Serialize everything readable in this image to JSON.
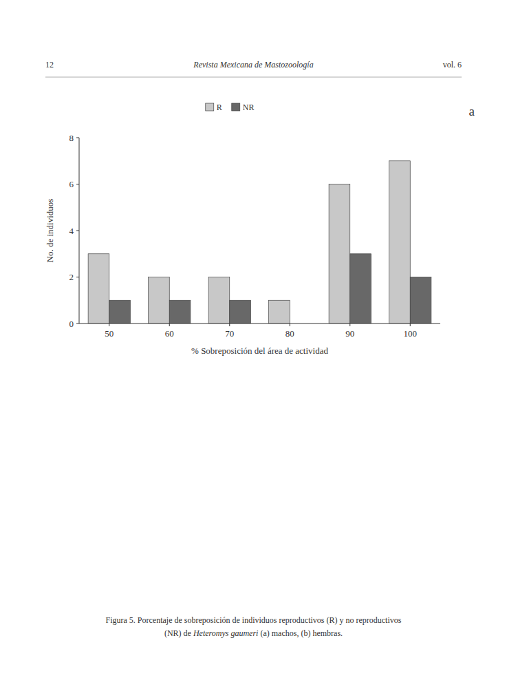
{
  "header": {
    "left": "12",
    "center": "Revista Mexicana de Mastozoología",
    "right": "vol. 6"
  },
  "chart_data": {
    "type": "bar",
    "categories": [
      "50",
      "60",
      "70",
      "80",
      "90",
      "100"
    ],
    "series": [
      {
        "name": "R",
        "color": "#c8c8c8",
        "values": [
          3,
          2,
          2,
          1,
          6,
          7
        ]
      },
      {
        "name": "NR",
        "color": "#686868",
        "values": [
          1,
          1,
          1,
          0,
          3,
          2
        ]
      }
    ],
    "ylim": [
      0,
      8
    ],
    "yticks": [
      0,
      2,
      4,
      6,
      8
    ],
    "ylabel": "No. de individuos",
    "xlabel": "% Sobreposición del área de actividad",
    "legend": "top",
    "grid": false,
    "annotations": [
      "a"
    ]
  },
  "caption": {
    "line1": "Figura 5. Porcentaje de sobreposición de individuos reproductivos (R) y no reproductivos",
    "line2": [
      "(NR) de ",
      "Heteromys gaumeri",
      " (a) machos, (b) hembras."
    ]
  }
}
